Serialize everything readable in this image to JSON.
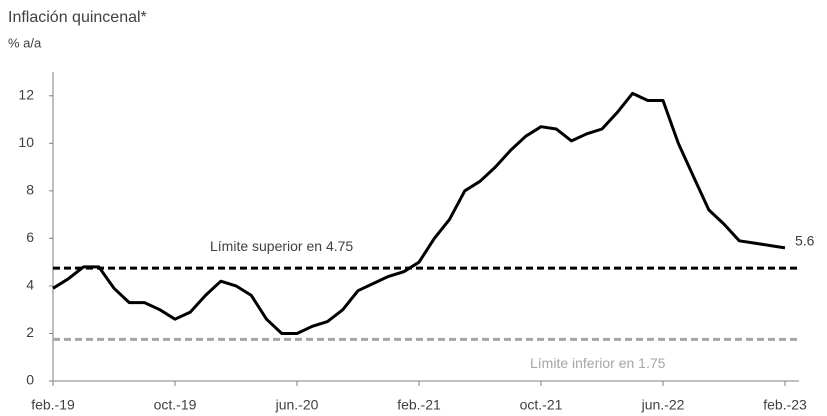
{
  "chart_data": {
    "type": "line",
    "title": "Inflación quincenal*",
    "subtitle": "% a/a",
    "categories": [
      "feb.-19",
      null,
      null,
      null,
      null,
      null,
      null,
      null,
      "oct.-19",
      null,
      null,
      null,
      null,
      null,
      null,
      null,
      "jun.-20",
      null,
      null,
      null,
      null,
      null,
      null,
      null,
      "feb.-21",
      null,
      null,
      null,
      null,
      null,
      null,
      null,
      "oct.-21",
      null,
      null,
      null,
      null,
      null,
      null,
      null,
      "jun.-22",
      null,
      null,
      null,
      null,
      null,
      null,
      null,
      "feb.-23"
    ],
    "values": [
      3.9,
      4.3,
      4.8,
      4.8,
      3.9,
      3.3,
      3.3,
      3.0,
      2.6,
      2.9,
      3.6,
      4.2,
      4.0,
      3.6,
      2.6,
      2.0,
      2.0,
      2.3,
      2.5,
      3.0,
      3.8,
      4.1,
      4.4,
      4.6,
      5.0,
      6.0,
      6.8,
      8.0,
      8.4,
      9.0,
      9.7,
      10.3,
      10.7,
      10.6,
      10.1,
      10.4,
      10.6,
      11.3,
      12.1,
      11.8,
      11.8,
      10.0,
      8.6,
      7.2,
      6.6,
      5.9,
      5.8,
      5.7,
      5.6
    ],
    "color": "#000000",
    "ylim": [
      0,
      13
    ],
    "yticks": [
      0,
      2,
      4,
      6,
      8,
      10,
      12
    ],
    "reference_lines": [
      {
        "label": "Límite superior en 4.75",
        "value": 4.75,
        "color": "#000000"
      },
      {
        "label": "Límite inferior en 1.75",
        "value": 1.75,
        "color": "#a6a6a6"
      }
    ]
  }
}
